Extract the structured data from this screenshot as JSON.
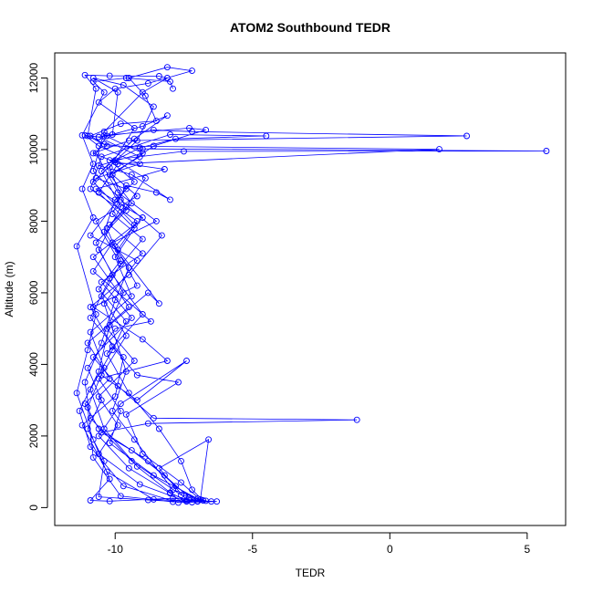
{
  "chart_data": {
    "type": "line",
    "title": "ATOM2 Southbound TEDR",
    "xlabel": "TEDR",
    "ylabel": "Altitude (m)",
    "xlim": [
      -12.2,
      6.4
    ],
    "ylim": [
      -500,
      12700
    ],
    "xticks": [
      -10,
      -5,
      0,
      5
    ],
    "yticks": [
      0,
      2000,
      4000,
      6000,
      8000,
      10000,
      12000
    ],
    "grid": false,
    "legend": "none",
    "series_color": "#0000ff",
    "marker": "open-circle",
    "series": [
      {
        "values": [
          [
            -7.4,
            180
          ],
          [
            -8.0,
            420
          ],
          [
            -9.2,
            1150
          ],
          [
            -10.4,
            2200
          ],
          [
            -10.9,
            3300
          ],
          [
            -10.1,
            4400
          ],
          [
            -9.6,
            5200
          ],
          [
            -10.6,
            6100
          ],
          [
            -9.8,
            6900
          ],
          [
            -10.3,
            7800
          ],
          [
            -9.4,
            8500
          ],
          [
            -10.2,
            9300
          ],
          [
            -9.1,
            9800
          ],
          [
            -10.6,
            10350
          ],
          [
            -8.6,
            10550
          ],
          [
            -7.2,
            10500
          ],
          [
            2.8,
            10380
          ],
          [
            -9.5,
            10250
          ],
          [
            -10.8,
            9900
          ],
          [
            -10.0,
            9650
          ],
          [
            -8.2,
            9450
          ],
          [
            -10.7,
            8900
          ],
          [
            -9.0,
            8100
          ],
          [
            -10.0,
            7300
          ],
          [
            -9.2,
            6200
          ],
          [
            -10.8,
            5600
          ],
          [
            -9.0,
            4700
          ],
          [
            -8.1,
            4100
          ],
          [
            -10.6,
            3600
          ],
          [
            -9.8,
            2700
          ],
          [
            -10.2,
            1800
          ],
          [
            -8.6,
            900
          ],
          [
            -7.0,
            250
          ],
          [
            -6.7,
            190
          ],
          [
            -7.6,
            350
          ],
          [
            -9.4,
            1300
          ],
          [
            -10.9,
            2500
          ],
          [
            -11.1,
            3500
          ],
          [
            -10.5,
            4600
          ],
          [
            -10.0,
            5800
          ],
          [
            -9.5,
            6700
          ],
          [
            -10.4,
            7700
          ],
          [
            -10.0,
            8600
          ],
          [
            -9.3,
            9100
          ],
          [
            -10.2,
            9700
          ],
          [
            -7.5,
            9950
          ],
          [
            5.7,
            9960
          ],
          [
            -9.0,
            10020
          ],
          [
            -10.4,
            10150
          ],
          [
            -10.9,
            10380
          ],
          [
            -9.8,
            10720
          ],
          [
            -8.5,
            10800
          ],
          [
            -8.9,
            11500
          ],
          [
            -9.5,
            12000
          ],
          [
            -8.1,
            12300
          ],
          [
            -7.2,
            12200
          ],
          [
            -8.8,
            11850
          ],
          [
            -10.0,
            11700
          ],
          [
            -10.6,
            11320
          ],
          [
            -9.3,
            10600
          ],
          [
            -10.2,
            9500
          ],
          [
            -9.6,
            8300
          ],
          [
            -10.7,
            7400
          ],
          [
            -10.1,
            6500
          ],
          [
            -9.0,
            5400
          ],
          [
            -10.3,
            4300
          ],
          [
            -9.5,
            3200
          ],
          [
            -8.4,
            2200
          ],
          [
            -7.6,
            1300
          ],
          [
            -7.2,
            500
          ],
          [
            -6.8,
            200
          ],
          [
            -7.9,
            160
          ],
          [
            -9.8,
            320
          ],
          [
            -10.8,
            1400
          ],
          [
            -11.0,
            2800
          ],
          [
            -10.4,
            3900
          ],
          [
            -10.9,
            4900
          ],
          [
            -9.4,
            5900
          ],
          [
            -10.0,
            7000
          ],
          [
            -9.3,
            7800
          ],
          [
            -10.6,
            8800
          ],
          [
            -9.9,
            9600
          ],
          [
            1.8,
            10010
          ],
          [
            -10.3,
            10100
          ],
          [
            -11.0,
            10380
          ],
          [
            -10.7,
            11700
          ],
          [
            -11.1,
            12080
          ],
          [
            -10.2,
            12060
          ],
          [
            -8.4,
            12050
          ],
          [
            -8.1,
            12000
          ],
          [
            -9.0,
            11600
          ],
          [
            -10.4,
            10500
          ],
          [
            -10.8,
            9400
          ],
          [
            -9.8,
            8600
          ],
          [
            -8.3,
            7600
          ],
          [
            -9.5,
            6500
          ],
          [
            -10.9,
            5600
          ],
          [
            -10.1,
            4500
          ],
          [
            -9.2,
            3700
          ],
          [
            -7.7,
            3500
          ],
          [
            -9.6,
            2600
          ],
          [
            -9.0,
            1500
          ],
          [
            -7.6,
            700
          ],
          [
            -6.9,
            220
          ],
          [
            -6.6,
            1900
          ],
          [
            -8.4,
            1100
          ],
          [
            -7.4,
            210
          ],
          [
            -6.3,
            170
          ],
          [
            -7.7,
            140
          ],
          [
            -9.7,
            600
          ],
          [
            -10.9,
            1700
          ],
          [
            -11.3,
            2700
          ],
          [
            -10.6,
            3800
          ],
          [
            -10.2,
            5100
          ],
          [
            -8.8,
            6000
          ],
          [
            -8.4,
            5700
          ],
          [
            -9.9,
            7200
          ],
          [
            -9.2,
            8000
          ],
          [
            -10.9,
            8900
          ],
          [
            -10.5,
            9800
          ],
          [
            -8.0,
            10420
          ],
          [
            -4.5,
            10380
          ],
          [
            -7.8,
            10300
          ],
          [
            -9.1,
            10050
          ],
          [
            -10.0,
            9700
          ],
          [
            -8.9,
            9200
          ],
          [
            -9.6,
            8400
          ],
          [
            -10.2,
            7900
          ],
          [
            -9.0,
            7100
          ],
          [
            -10.5,
            6300
          ],
          [
            -9.4,
            5300
          ],
          [
            -10.8,
            4200
          ],
          [
            -9.9,
            3400
          ],
          [
            -8.6,
            2500
          ],
          [
            -1.2,
            2450
          ],
          [
            -8.8,
            2350
          ],
          [
            -10.5,
            2100
          ],
          [
            -9.4,
            1600
          ],
          [
            -8.2,
            900
          ],
          [
            -7.3,
            280
          ],
          [
            -7.0,
            170
          ],
          [
            -8.6,
            230
          ],
          [
            -10.3,
            1000
          ],
          [
            -11.2,
            2300
          ],
          [
            -10.0,
            3100
          ],
          [
            -9.7,
            4200
          ],
          [
            -10.9,
            5300
          ],
          [
            -10.2,
            6400
          ],
          [
            -9.0,
            7500
          ],
          [
            -10.1,
            8200
          ],
          [
            -9.6,
            9000
          ],
          [
            -8.5,
            8800
          ],
          [
            -8.0,
            8600
          ],
          [
            -9.4,
            9300
          ],
          [
            -10.6,
            9550
          ],
          [
            -9.0,
            9900
          ],
          [
            -10.4,
            10400
          ],
          [
            -7.3,
            10600
          ],
          [
            -6.7,
            10550
          ],
          [
            -8.6,
            10100
          ],
          [
            -10.1,
            9300
          ],
          [
            -9.2,
            8700
          ],
          [
            -10.7,
            8000
          ],
          [
            -9.8,
            6800
          ],
          [
            -10.5,
            5900
          ],
          [
            -9.6,
            4800
          ],
          [
            -10.5,
            3700
          ],
          [
            -9.2,
            3000
          ],
          [
            -7.4,
            4100
          ],
          [
            -9.8,
            2900
          ],
          [
            -10.6,
            2000
          ],
          [
            -9.5,
            1100
          ],
          [
            -8.0,
            400
          ],
          [
            -7.2,
            150
          ],
          [
            -8.8,
            210
          ],
          [
            -10.6,
            300
          ],
          [
            -10.4,
            1300
          ],
          [
            -11.0,
            2200
          ],
          [
            -10.5,
            3000
          ],
          [
            -11.0,
            3900
          ],
          [
            -10.0,
            5000
          ],
          [
            -8.7,
            5200
          ],
          [
            -10.8,
            6600
          ],
          [
            -10.1,
            7400
          ],
          [
            -8.5,
            8000
          ],
          [
            -9.9,
            8800
          ],
          [
            -10.7,
            9900
          ],
          [
            -10.3,
            10380
          ],
          [
            -9.0,
            10650
          ],
          [
            -8.1,
            10950
          ],
          [
            -9.3,
            10300
          ],
          [
            -10.5,
            9400
          ],
          [
            -9.8,
            8400
          ],
          [
            -10.6,
            7200
          ],
          [
            -9.7,
            6000
          ],
          [
            -10.3,
            5000
          ],
          [
            -9.3,
            4100
          ],
          [
            -10.6,
            3100
          ],
          [
            -9.9,
            2300
          ],
          [
            -10.6,
            1500
          ],
          [
            -9.1,
            650
          ],
          [
            -7.4,
            170
          ],
          [
            -6.9,
            230
          ],
          [
            -7.9,
            500
          ],
          [
            -9.3,
            1900
          ],
          [
            -10.1,
            2700
          ],
          [
            -9.6,
            3800
          ],
          [
            -10.4,
            5700
          ],
          [
            -9.2,
            6900
          ],
          [
            -10.9,
            7600
          ],
          [
            -9.6,
            8900
          ],
          [
            -10.7,
            9200
          ],
          [
            -9.1,
            9600
          ],
          [
            -10.6,
            10100
          ],
          [
            -11.1,
            10400
          ],
          [
            -10.6,
            10350
          ],
          [
            -10.1,
            10420
          ],
          [
            -9.9,
            11600
          ],
          [
            -10.8,
            12000
          ],
          [
            -9.7,
            11800
          ],
          [
            -8.6,
            11200
          ],
          [
            -9.2,
            10250
          ],
          [
            -10.8,
            9100
          ],
          [
            -9.3,
            7900
          ],
          [
            -10.8,
            7000
          ],
          [
            -9.5,
            5600
          ],
          [
            -11.0,
            4600
          ],
          [
            -10.2,
            3600
          ],
          [
            -11.1,
            2900
          ],
          [
            -10.6,
            2200
          ],
          [
            -8.8,
            1300
          ],
          [
            -7.8,
            600
          ],
          [
            -7.0,
            180
          ],
          [
            -6.5,
            170
          ],
          [
            -7.9,
            260
          ],
          [
            -10.2,
            180
          ],
          [
            -10.9,
            200
          ],
          [
            -10.2,
            800
          ],
          [
            -10.8,
            1900
          ],
          [
            -11.4,
            3200
          ],
          [
            -11.0,
            4400
          ],
          [
            -10.7,
            5400
          ],
          [
            -11.4,
            7300
          ],
          [
            -10.8,
            8100
          ],
          [
            -11.2,
            8900
          ],
          [
            -10.8,
            9600
          ],
          [
            -11.2,
            10400
          ],
          [
            -10.4,
            11600
          ],
          [
            -10.8,
            11900
          ],
          [
            -9.6,
            12000
          ],
          [
            -8.0,
            11900
          ],
          [
            -7.9,
            11700
          ]
        ]
      }
    ]
  }
}
